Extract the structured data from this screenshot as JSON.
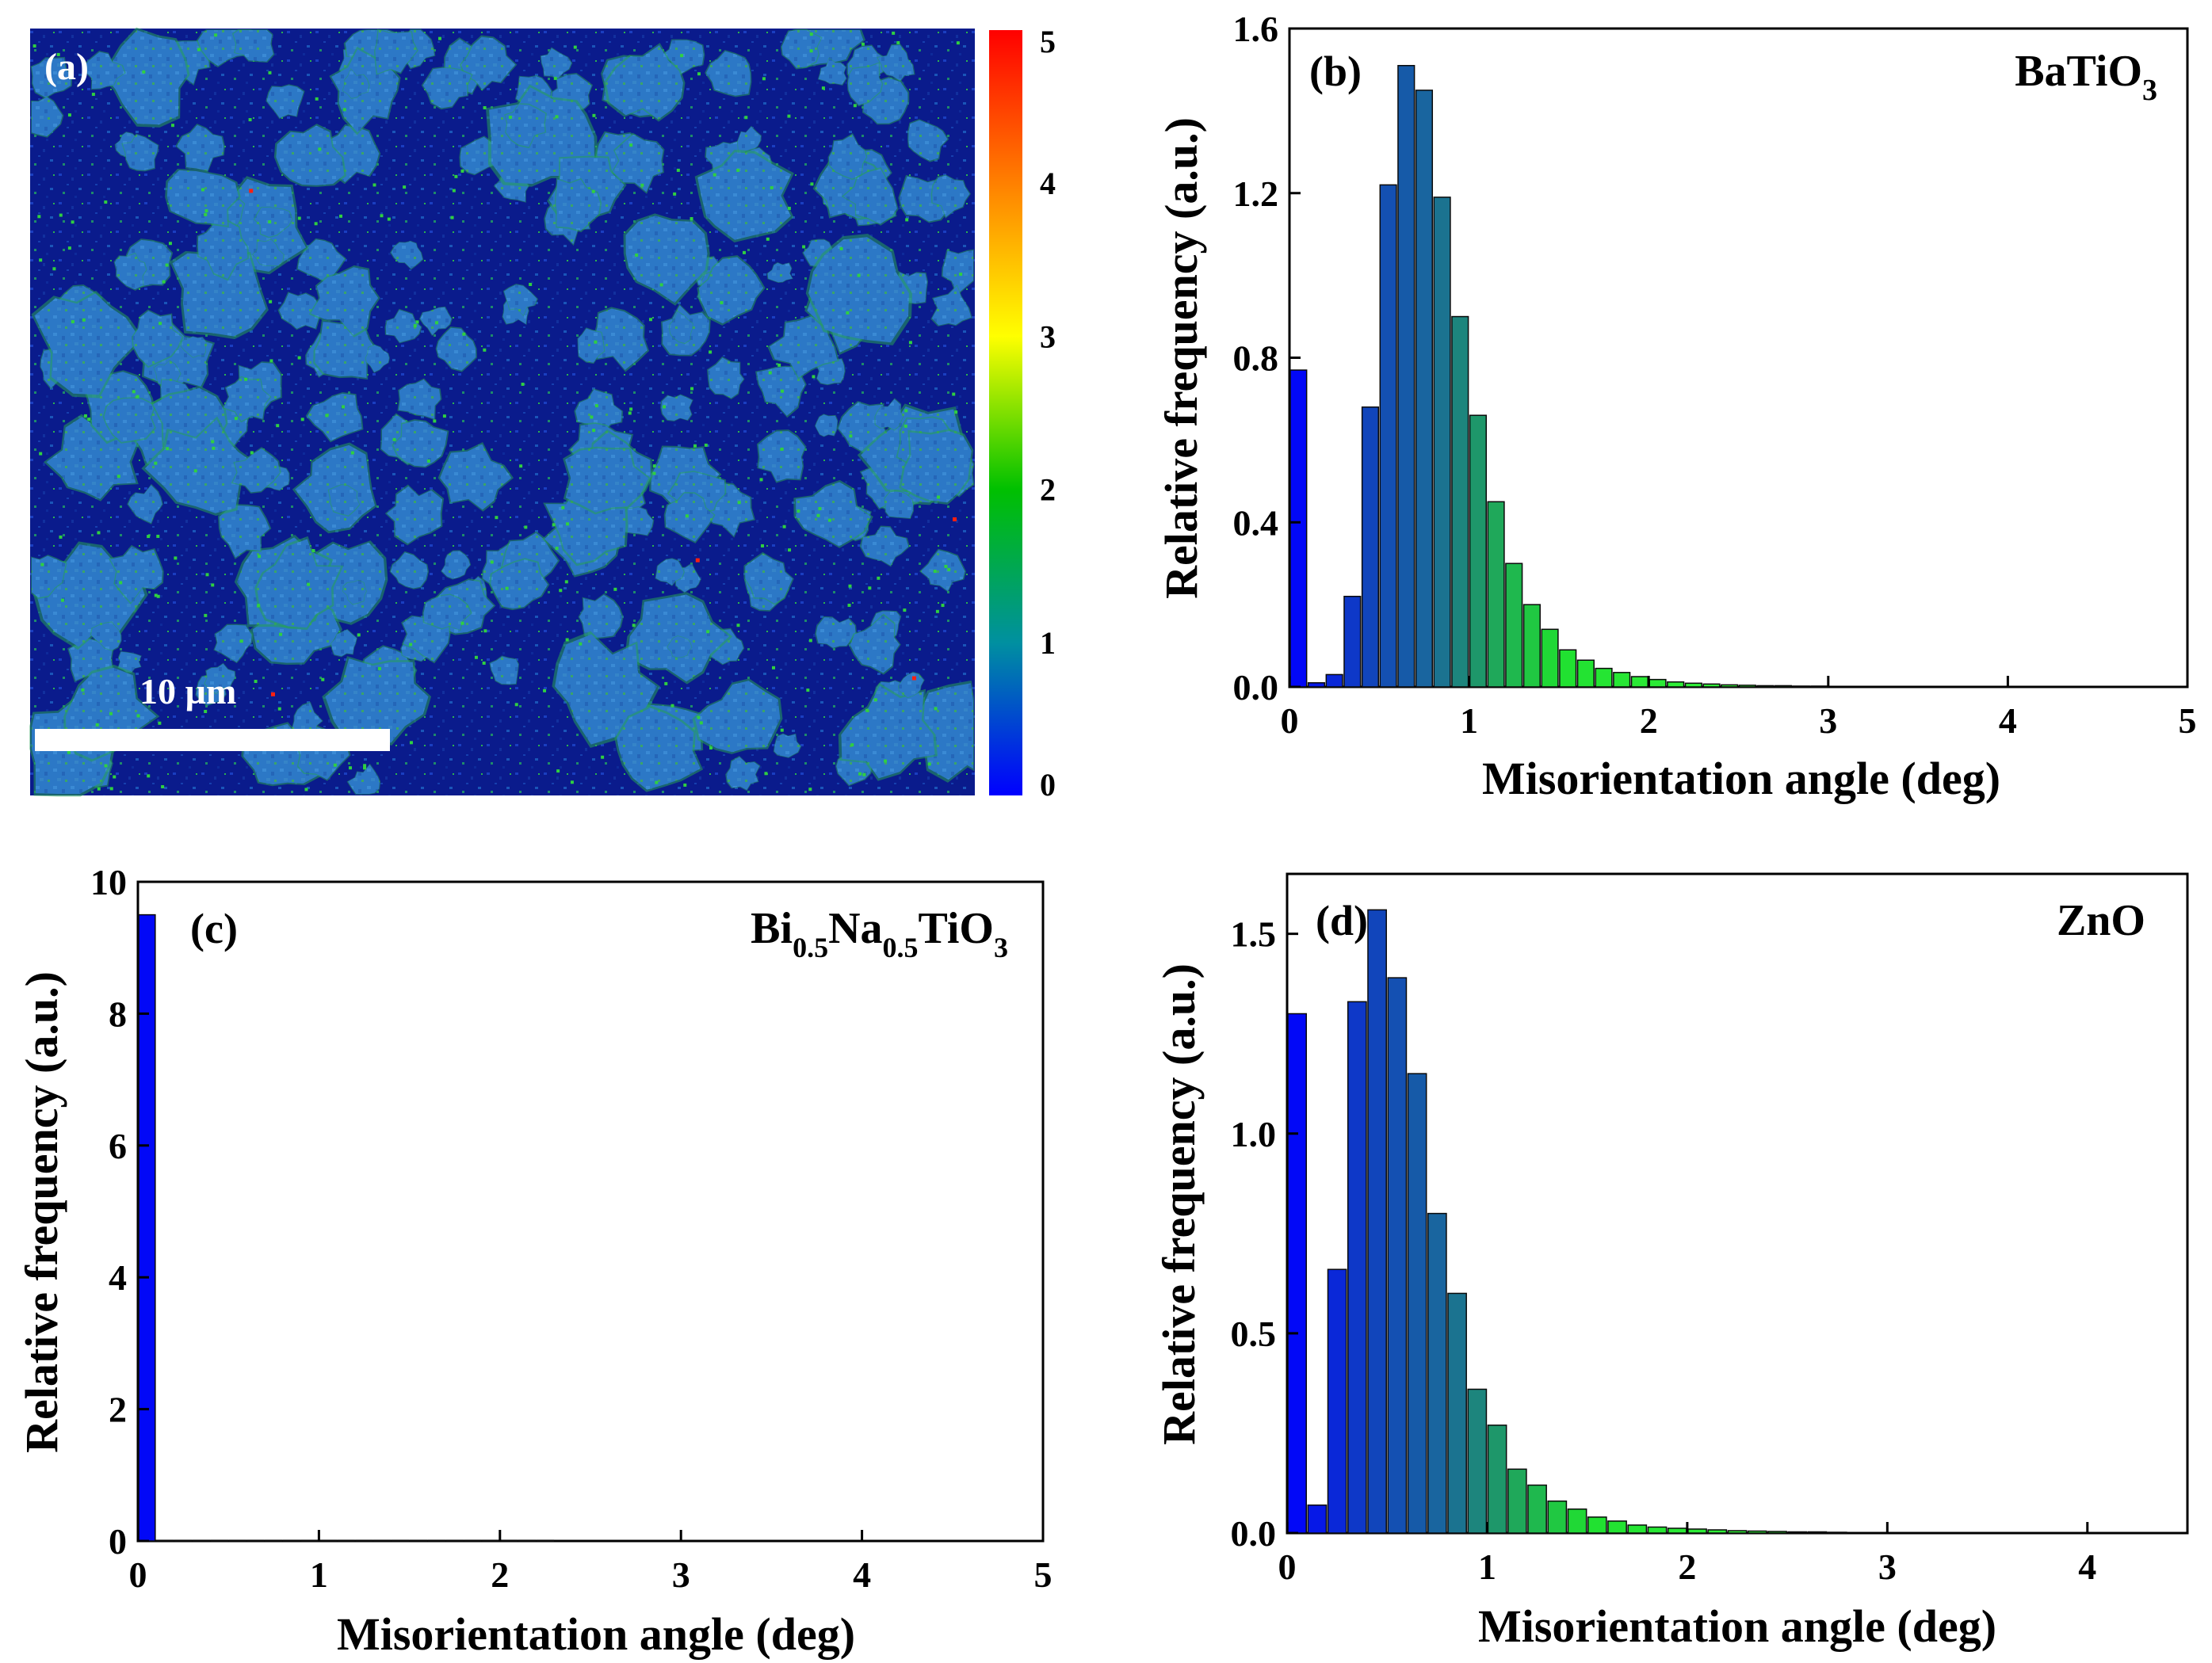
{
  "figure": {
    "panels": [
      "(a)",
      "(b)",
      "(c)",
      "(d)"
    ]
  },
  "map_panel": {
    "label": "(a)",
    "scale_bar_label": "10 µm",
    "colorbar_ticks": [
      "0",
      "1",
      "2",
      "3",
      "4",
      "5"
    ],
    "colors": {
      "background": "#0a1b8c",
      "grain": "#2c78c6",
      "edge": "#27b84a",
      "colorbar": [
        "#0000ff",
        "#0090a0",
        "#00c000",
        "#ffff00",
        "#ff8000",
        "#ff0000"
      ]
    }
  },
  "chart_data": [
    {
      "type": "bar",
      "panel": "(b)",
      "material": {
        "base": "BaTiO",
        "sub": "3"
      },
      "xlabel": "Misorientation angle (deg)",
      "ylabel": "Relative frequency (a.u.)",
      "xlim": [
        0,
        5
      ],
      "ylim": [
        0,
        1.6
      ],
      "xticks": [
        "0",
        "1",
        "2",
        "3",
        "4",
        "5"
      ],
      "yticks": [
        "0.0",
        "0.4",
        "0.8",
        "1.2",
        "1.6"
      ],
      "bin_width": 0.1,
      "x": [
        0.05,
        0.15,
        0.25,
        0.35,
        0.45,
        0.55,
        0.65,
        0.75,
        0.85,
        0.95,
        1.05,
        1.15,
        1.25,
        1.35,
        1.45,
        1.55,
        1.65,
        1.75,
        1.85,
        1.95,
        2.05,
        2.15,
        2.25,
        2.35,
        2.45,
        2.55,
        2.65,
        2.75,
        2.85,
        2.95
      ],
      "values": [
        0.77,
        0.01,
        0.03,
        0.22,
        0.68,
        1.22,
        1.51,
        1.45,
        1.19,
        0.9,
        0.66,
        0.45,
        0.3,
        0.2,
        0.14,
        0.09,
        0.065,
        0.045,
        0.035,
        0.025,
        0.018,
        0.012,
        0.009,
        0.007,
        0.005,
        0.004,
        0.003,
        0.003,
        0.002,
        0.002
      ]
    },
    {
      "type": "bar",
      "panel": "(c)",
      "material": "Bi0.5Na0.5TiO3",
      "material_parts": [
        "Bi",
        "0.5",
        "Na",
        "0.5",
        "TiO",
        "3"
      ],
      "xlabel": "Misorientation angle (deg)",
      "ylabel": "Relative frequency (a.u.)",
      "xlim": [
        0,
        5
      ],
      "ylim": [
        0,
        10
      ],
      "xticks": [
        "0",
        "1",
        "2",
        "3",
        "4",
        "5"
      ],
      "yticks": [
        "0",
        "2",
        "4",
        "6",
        "8",
        "10"
      ],
      "bin_width": 0.1,
      "x": [
        0.05,
        0.15,
        0.25,
        0.35,
        0.45,
        0.55,
        0.65,
        0.75,
        0.85,
        0.95,
        1.05,
        1.15,
        1.25,
        1.35,
        1.45,
        1.55,
        1.65,
        1.75,
        1.85,
        1.95,
        2.05,
        2.15,
        2.25
      ],
      "values": [
        9.5,
        0.01,
        0.01,
        0.01,
        0.01,
        0.01,
        0.01,
        0.01,
        0.01,
        0.01,
        0.01,
        0.01,
        0.01,
        0.01,
        0.01,
        0.01,
        0.01,
        0.01,
        0.01,
        0.01,
        0.01,
        0.01,
        0.01
      ]
    },
    {
      "type": "bar",
      "panel": "(d)",
      "material": "ZnO",
      "xlabel": "Misorientation angle (deg)",
      "ylabel": "Relative frequency (a.u.)",
      "xlim": [
        0,
        4.5
      ],
      "ylim": [
        0,
        1.65
      ],
      "xticks": [
        "0",
        "1",
        "2",
        "3",
        "4"
      ],
      "yticks": [
        "0.0",
        "0.5",
        "1.0",
        "1.5"
      ],
      "bin_width": 0.1,
      "x": [
        0.05,
        0.15,
        0.25,
        0.35,
        0.45,
        0.55,
        0.65,
        0.75,
        0.85,
        0.95,
        1.05,
        1.15,
        1.25,
        1.35,
        1.45,
        1.55,
        1.65,
        1.75,
        1.85,
        1.95,
        2.05,
        2.15,
        2.25,
        2.35,
        2.45,
        2.55,
        2.65,
        2.75
      ],
      "values": [
        1.3,
        0.07,
        0.66,
        1.33,
        1.56,
        1.39,
        1.15,
        0.8,
        0.6,
        0.36,
        0.27,
        0.16,
        0.12,
        0.08,
        0.06,
        0.04,
        0.03,
        0.02,
        0.015,
        0.012,
        0.01,
        0.008,
        0.006,
        0.005,
        0.004,
        0.003,
        0.003,
        0.002
      ]
    }
  ]
}
